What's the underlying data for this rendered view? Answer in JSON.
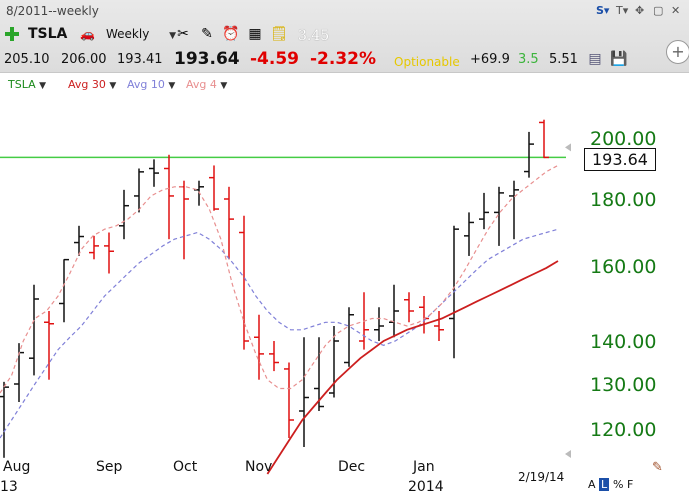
{
  "toolbar": {
    "period_label": "8/2011--weekly",
    "symbol": "TSLA",
    "interval": "Weekly",
    "caret": "▼",
    "misc_value": "3.45",
    "win_buttons": [
      "S▾",
      "T▾",
      "✥",
      "▢",
      "✕"
    ]
  },
  "quote": {
    "open": "205.10",
    "high": "206.00",
    "low": "193.41",
    "last": "193.64",
    "change": "-4.59",
    "change_pct": "-2.32%",
    "optionable": "Optionable",
    "stat1": "+69.9",
    "stat2": "3.5",
    "stat3": "5.51"
  },
  "legend": [
    {
      "label": "TSLA",
      "color": "#1a8a1a"
    },
    {
      "label": "Avg 30",
      "color": "#cc1f1f"
    },
    {
      "label": "Avg 10",
      "color": "#8080d8"
    },
    {
      "label": "Avg 4",
      "color": "#e88f8f"
    }
  ],
  "chart_data": {
    "type": "bar",
    "title": "TSLA",
    "interval": "weekly",
    "last_price": 193.64,
    "resistance_line": 193.64,
    "y_tick_labels": [
      "200.00",
      "180.00",
      "160.00",
      "140.00",
      "130.00",
      "120.00"
    ],
    "y_ticks": [
      200,
      180,
      160,
      140,
      130,
      120
    ],
    "x_tick_labels": [
      "Aug",
      "Sep",
      "Oct",
      "Nov",
      "Dec",
      "Jan"
    ],
    "year_labels": [
      "13",
      "2014"
    ],
    "last_date": "2/19/14",
    "scale_buttons": [
      "A",
      "L",
      "%",
      "F"
    ],
    "colors": {
      "up": "#111111",
      "down": "#e01010",
      "resistance": "#44cc44",
      "avg30": "#cc1f1f",
      "avg10": "#8080d8",
      "avg4": "#e88f8f",
      "axis_text": "#157a15"
    },
    "bars": [
      {
        "o": 127.2,
        "h": 130.5,
        "l": 113.6,
        "c": 129.3,
        "dir": "up"
      },
      {
        "o": 130.0,
        "h": 139.5,
        "l": 126.0,
        "c": 137.3,
        "dir": "up"
      },
      {
        "o": 136.0,
        "h": 155.0,
        "l": 132.0,
        "c": 151.2,
        "dir": "up"
      },
      {
        "o": 145.0,
        "h": 148.0,
        "l": 131.0,
        "c": 144.6,
        "dir": "down"
      },
      {
        "o": 150.0,
        "h": 162.0,
        "l": 145.0,
        "c": 161.9,
        "dir": "up"
      },
      {
        "o": 167.0,
        "h": 172.0,
        "l": 163.0,
        "c": 168.8,
        "dir": "up"
      },
      {
        "o": 164.0,
        "h": 169.0,
        "l": 162.0,
        "c": 166.0,
        "dir": "down"
      },
      {
        "o": 166.0,
        "h": 170.0,
        "l": 158.0,
        "c": 164.4,
        "dir": "down"
      },
      {
        "o": 172.0,
        "h": 183.0,
        "l": 168.0,
        "c": 178.0,
        "dir": "up"
      },
      {
        "o": 181.0,
        "h": 190.0,
        "l": 176.0,
        "c": 188.9,
        "dir": "up"
      },
      {
        "o": 190.0,
        "h": 193.0,
        "l": 184.0,
        "c": 188.5,
        "dir": "up"
      },
      {
        "o": 190.0,
        "h": 194.5,
        "l": 168.0,
        "c": 181.0,
        "dir": "down"
      },
      {
        "o": 184.0,
        "h": 186.0,
        "l": 162.0,
        "c": 180.0,
        "dir": "down"
      },
      {
        "o": 183.0,
        "h": 186.0,
        "l": 178.0,
        "c": 184.0,
        "dir": "up"
      },
      {
        "o": 187.0,
        "h": 191.0,
        "l": 176.5,
        "c": 177.0,
        "dir": "down"
      },
      {
        "o": 180.0,
        "h": 184.0,
        "l": 162.0,
        "c": 174.0,
        "dir": "down"
      },
      {
        "o": 170.0,
        "h": 175.0,
        "l": 138.0,
        "c": 140.0,
        "dir": "down"
      },
      {
        "o": 141.0,
        "h": 147.0,
        "l": 131.0,
        "c": 137.0,
        "dir": "down"
      },
      {
        "o": 137.0,
        "h": 140.0,
        "l": 133.0,
        "c": 135.0,
        "dir": "down"
      },
      {
        "o": 133.5,
        "h": 135.0,
        "l": 118.0,
        "c": 122.0,
        "dir": "down"
      },
      {
        "o": 124.0,
        "h": 141.0,
        "l": 116.0,
        "c": 127.0,
        "dir": "up"
      },
      {
        "o": 129.0,
        "h": 141.0,
        "l": 124.0,
        "c": 125.0,
        "dir": "up"
      },
      {
        "o": 128.0,
        "h": 144.0,
        "l": 127.0,
        "c": 140.0,
        "dir": "up"
      },
      {
        "o": 135.0,
        "h": 149.0,
        "l": 134.0,
        "c": 147.0,
        "dir": "up"
      },
      {
        "o": 140.0,
        "h": 153.0,
        "l": 138.0,
        "c": 143.0,
        "dir": "down"
      },
      {
        "o": 143.0,
        "h": 149.0,
        "l": 140.0,
        "c": 144.0,
        "dir": "up"
      },
      {
        "o": 145.0,
        "h": 155.0,
        "l": 141.0,
        "c": 148.0,
        "dir": "up"
      },
      {
        "o": 151.0,
        "h": 153.0,
        "l": 145.0,
        "c": 148.0,
        "dir": "down"
      },
      {
        "o": 149.0,
        "h": 152.0,
        "l": 142.0,
        "c": 146.0,
        "dir": "down"
      },
      {
        "o": 144.0,
        "h": 148.0,
        "l": 140.0,
        "c": 143.0,
        "dir": "down"
      },
      {
        "o": 146.0,
        "h": 172.0,
        "l": 136.0,
        "c": 171.0,
        "dir": "up"
      },
      {
        "o": 169.0,
        "h": 176.0,
        "l": 163.0,
        "c": 173.0,
        "dir": "up"
      },
      {
        "o": 174.0,
        "h": 182.0,
        "l": 171.0,
        "c": 176.0,
        "dir": "up"
      },
      {
        "o": 176.0,
        "h": 184.0,
        "l": 166.0,
        "c": 182.0,
        "dir": "up"
      },
      {
        "o": 181.0,
        "h": 186.0,
        "l": 168.0,
        "c": 183.0,
        "dir": "up"
      },
      {
        "o": 189.0,
        "h": 202.0,
        "l": 187.0,
        "c": 198.0,
        "dir": "up"
      },
      {
        "o": 205.1,
        "h": 206.0,
        "l": 193.41,
        "c": 193.64,
        "dir": "down"
      }
    ],
    "avg30": [
      null,
      null,
      null,
      null,
      null,
      null,
      null,
      null,
      null,
      null,
      null,
      null,
      null,
      null,
      null,
      null,
      null,
      null,
      null,
      null,
      null,
      null,
      null,
      110.0,
      114.0,
      118.0,
      122.0,
      125.0,
      128.0,
      131.0,
      133.5,
      136.0,
      138.0,
      140.0,
      141.5,
      143.0,
      144.0,
      145.0,
      146.0,
      147.5,
      149.0,
      150.5,
      152.0,
      153.5,
      155.0,
      156.5,
      158.0,
      159.5,
      161.5
    ],
    "avg10": [
      118.0,
      122.0,
      126.0,
      130.0,
      134.0,
      138.0,
      141.0,
      144.0,
      148.0,
      152.0,
      155.0,
      158.0,
      161.0,
      163.5,
      166.0,
      168.0,
      169.0,
      170.0,
      168.0,
      165.0,
      161.0,
      157.0,
      152.0,
      148.0,
      145.0,
      143.0,
      143.0,
      144.0,
      145.0,
      145.0,
      144.0,
      142.0,
      140.0,
      139.0,
      140.0,
      142.0,
      144.0,
      147.0,
      150.0,
      153.0,
      156.0,
      159.0,
      162.0,
      164.0,
      166.0,
      168.0,
      169.0,
      170.0,
      171.0
    ],
    "avg4": [
      128.0,
      132.0,
      140.0,
      146.0,
      148.0,
      152.0,
      158.0,
      165.0,
      169.0,
      171.0,
      172.0,
      174.0,
      177.0,
      181.0,
      183.0,
      184.0,
      184.0,
      183.0,
      177.0,
      168.0,
      155.0,
      145.0,
      137.0,
      131.0,
      129.0,
      129.0,
      131.0,
      135.0,
      139.0,
      142.0,
      144.0,
      145.0,
      146.0,
      146.0,
      145.0,
      144.0,
      145.0,
      147.0,
      150.0,
      154.0,
      159.0,
      165.0,
      171.0,
      176.0,
      180.0,
      183.0,
      186.0,
      189.0,
      191.0
    ]
  }
}
